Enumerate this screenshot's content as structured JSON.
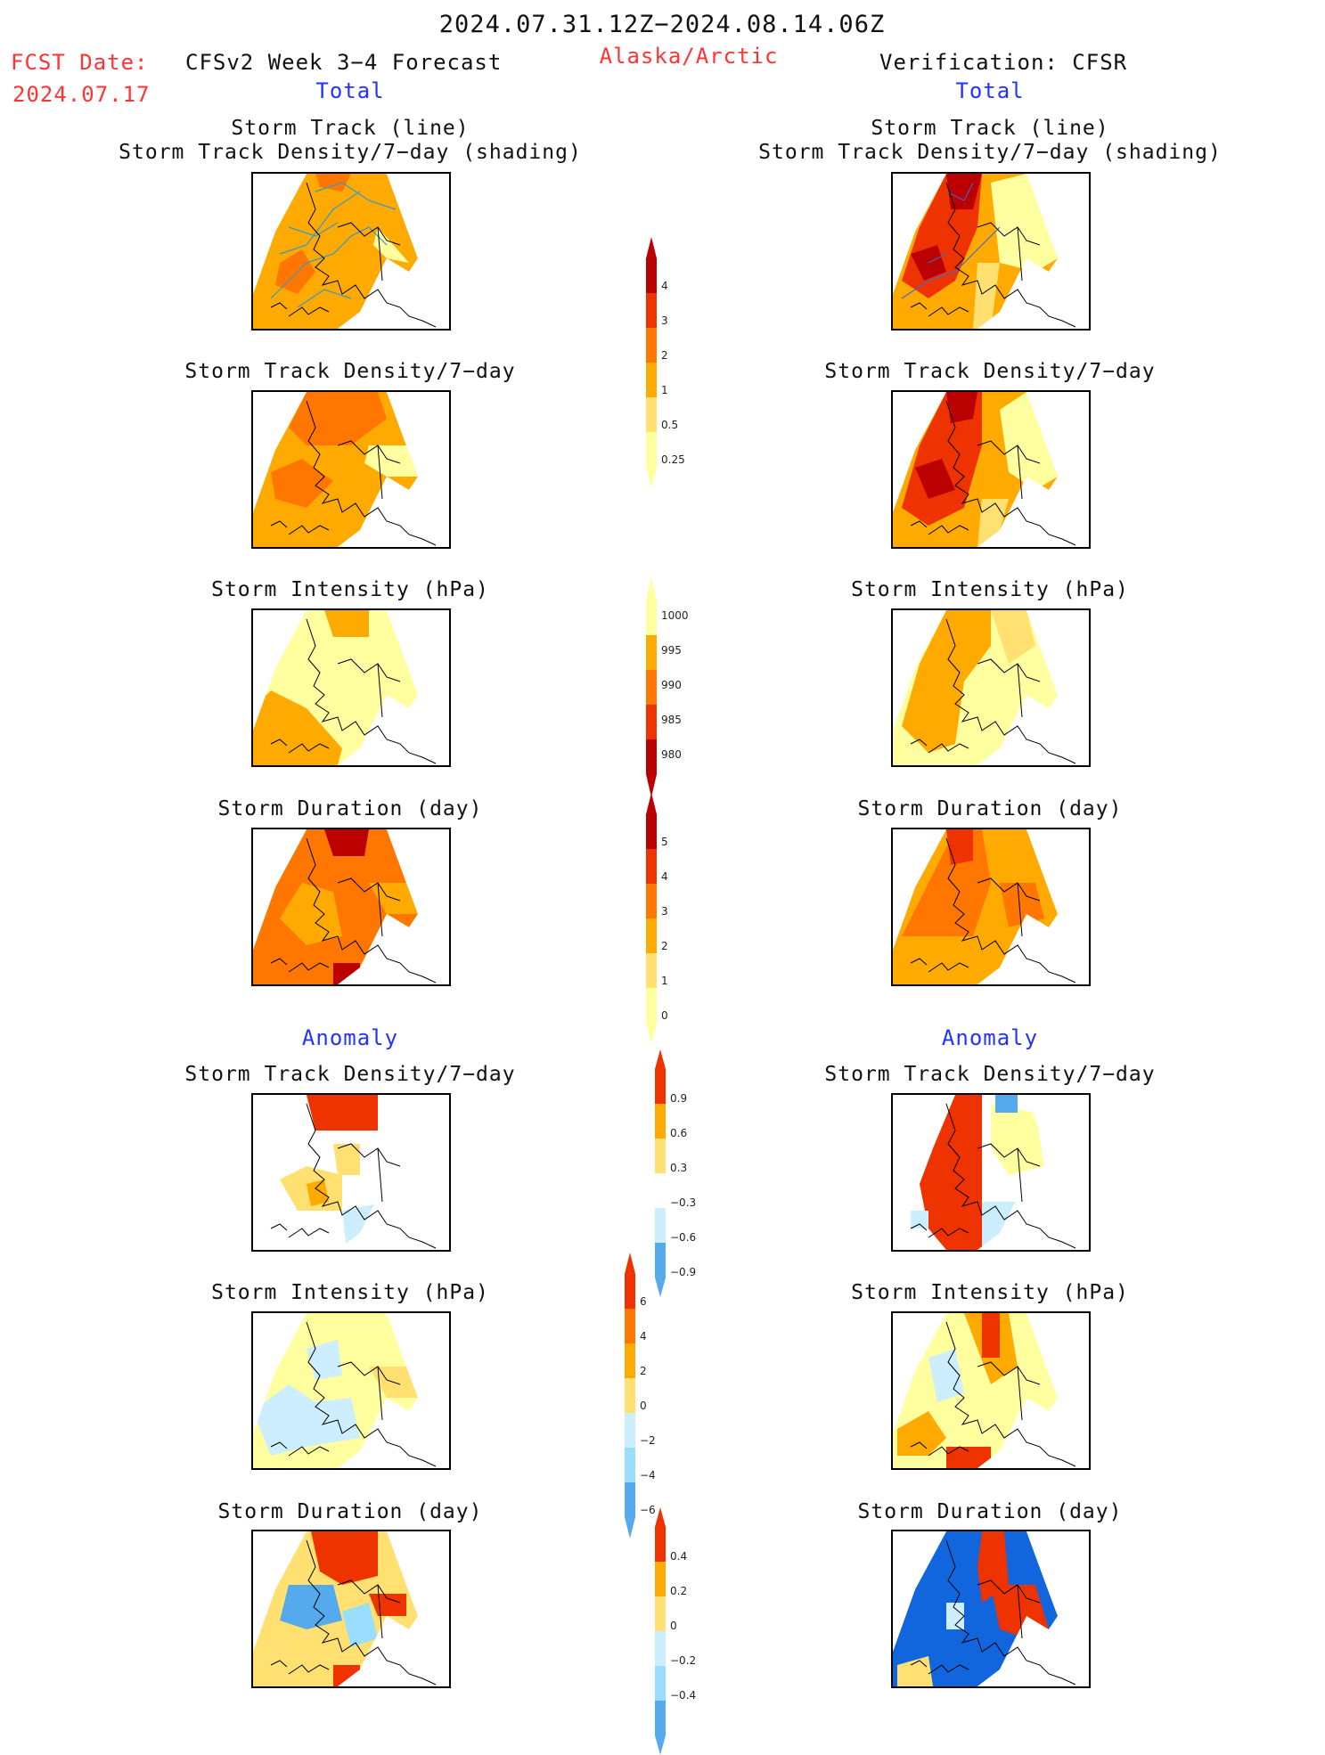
{
  "header": {
    "date_range": "2024.07.31.12Z−2024.08.14.06Z",
    "fcst_label": "FCST Date:",
    "fcst_date": "2024.07.17",
    "model_title": "CFSv2 Week 3−4 Forecast",
    "region": "Alaska/Arctic",
    "verification": "Verification: CFSR",
    "left_total": "Total",
    "right_total": "Total",
    "left_anomaly": "Anomaly",
    "right_anomaly": "Anomaly"
  },
  "titles": {
    "storm_track_line": "Storm Track (line)",
    "storm_track_shading": "Storm Track Density/7−day (shading)",
    "storm_track_density": "Storm Track Density/7−day",
    "storm_intensity": "Storm Intensity (hPa)",
    "storm_duration": "Storm Duration (day)"
  },
  "colorbars": {
    "density_total": [
      "4",
      "3",
      "2",
      "1",
      "0.5",
      "0.25"
    ],
    "intensity_total": [
      "1000",
      "995",
      "990",
      "985",
      "980"
    ],
    "duration_total": [
      "5",
      "4",
      "3",
      "2",
      "1",
      "0"
    ],
    "density_anom": [
      "0.9",
      "0.6",
      "0.3",
      "−0.3",
      "−0.6",
      "−0.9"
    ],
    "intensity_anom": [
      "6",
      "4",
      "2",
      "0",
      "−2",
      "−4",
      "−6"
    ],
    "duration_anom": [
      "0.4",
      "0.2",
      "0",
      "−0.2",
      "−0.4"
    ]
  },
  "colors": {
    "warm": [
      "#ffffa0",
      "#ffe070",
      "#ffaa00",
      "#ff7700",
      "#ee3300",
      "#bb0000",
      "#880000"
    ],
    "cool": [
      "#cceeff",
      "#99ddff",
      "#55aaee",
      "#1166dd"
    ],
    "coast": "#000000"
  }
}
